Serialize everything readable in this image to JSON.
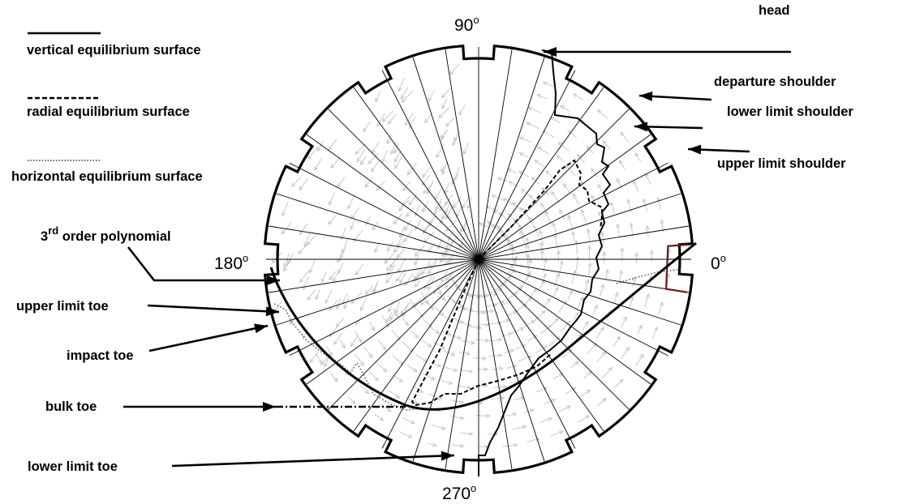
{
  "figure": {
    "angles": {
      "a90": "90",
      "a180": "180",
      "a0": "0",
      "a270": "270",
      "degree": "o"
    },
    "legend": {
      "vertical": "vertical equilibrium surface",
      "radial": "radial equilibrium surface",
      "horizontal": "horizontal equilibrium surface",
      "polynomial_prefix": "3",
      "polynomial_sup": "rd",
      "polynomial_suffix": " order polynomial"
    },
    "labels": {
      "head": "head",
      "departure_shoulder": "departure shoulder",
      "lower_limit_shoulder": "lower limit shoulder",
      "upper_limit_shoulder": "upper limit shoulder",
      "upper_limit_toe": "upper limit toe",
      "impact_toe": "impact toe",
      "bulk_toe": "bulk toe",
      "lower_limit_toe": "lower limit toe"
    },
    "colors": {
      "ink": "#000000",
      "vectors": "#c8c8c8",
      "liner_notch": "#6b1a1a"
    },
    "lifter_count": 12,
    "radial_line_count": 40
  }
}
